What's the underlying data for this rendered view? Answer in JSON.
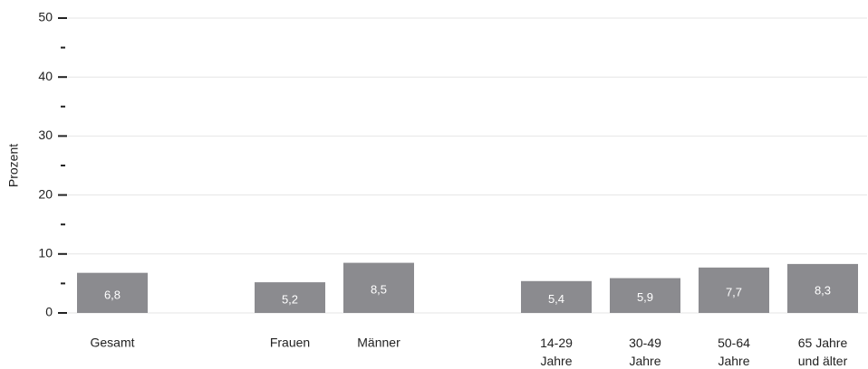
{
  "chart_data": {
    "type": "bar",
    "y_label": "Prozent",
    "categories": [
      "Gesamt",
      null,
      "Frauen",
      "Männer",
      null,
      "14-29 Jahre",
      "30-49 Jahre",
      "50-64 Jahre",
      "65 Jahre und älter"
    ],
    "values": [
      6.8,
      null,
      5.2,
      8.5,
      null,
      5.4,
      5.9,
      7.7,
      8.3
    ],
    "value_labels": [
      "6,8",
      null,
      "5,2",
      "8,5",
      null,
      "5,4",
      "5,9",
      "7,7",
      "8,3"
    ],
    "color": "#8b8b8f",
    "ylim": [
      0,
      50
    ],
    "yticks": [
      0,
      10,
      20,
      30,
      40,
      50
    ],
    "yminorticks": [
      5,
      15,
      25,
      35,
      45
    ],
    "grid": true
  }
}
